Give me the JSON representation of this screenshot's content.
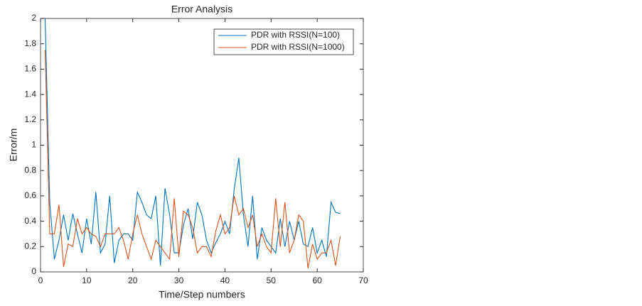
{
  "chart_data": {
    "type": "line",
    "title": "Error Analysis",
    "xlabel": "Time/Step numbers",
    "ylabel": "Error/m",
    "x": [
      1,
      2,
      3,
      4,
      5,
      6,
      7,
      8,
      9,
      10,
      11,
      12,
      13,
      14,
      15,
      16,
      17,
      18,
      19,
      20,
      21,
      22,
      23,
      24,
      25,
      26,
      27,
      28,
      29,
      30,
      31,
      32,
      33,
      34,
      35,
      36,
      37,
      38,
      39,
      40,
      41,
      42,
      43,
      44,
      45,
      46,
      47,
      48,
      49,
      50,
      51,
      52,
      53,
      54,
      55,
      56,
      57,
      58,
      59,
      60,
      61,
      62,
      63,
      64,
      65
    ],
    "series": [
      {
        "name": "PDR with RSSI(N=100)",
        "color": "#0072bd",
        "values": [
          2.0,
          0.55,
          0.1,
          0.25,
          0.45,
          0.25,
          0.46,
          0.3,
          0.15,
          0.42,
          0.22,
          0.63,
          0.15,
          0.22,
          0.6,
          0.07,
          0.25,
          0.3,
          0.3,
          0.25,
          0.63,
          0.55,
          0.45,
          0.42,
          0.6,
          0.05,
          0.66,
          0.45,
          0.15,
          0.15,
          0.37,
          0.5,
          0.26,
          0.55,
          0.45,
          0.25,
          0.15,
          0.23,
          0.3,
          0.4,
          0.3,
          0.65,
          0.9,
          0.45,
          0.2,
          0.6,
          0.1,
          0.35,
          0.25,
          0.2,
          0.15,
          0.42,
          0.2,
          0.4,
          0.25,
          0.4,
          0.22,
          0.2,
          0.35,
          0.15,
          0.25,
          0.12,
          0.55,
          0.47,
          0.46
        ]
      },
      {
        "name": "PDR with RSSI(N=1000)",
        "color": "#d95319",
        "values": [
          1.75,
          0.3,
          0.3,
          0.53,
          0.04,
          0.22,
          0.2,
          0.42,
          0.3,
          0.35,
          0.3,
          0.28,
          0.2,
          0.3,
          0.3,
          0.3,
          0.35,
          0.25,
          0.1,
          0.3,
          0.45,
          0.3,
          0.2,
          0.1,
          0.25,
          0.2,
          0.15,
          0.1,
          0.58,
          0.12,
          0.48,
          0.45,
          0.35,
          0.15,
          0.2,
          0.2,
          0.12,
          0.32,
          0.45,
          0.3,
          0.35,
          0.6,
          0.45,
          0.5,
          0.35,
          0.45,
          0.2,
          0.3,
          0.2,
          0.15,
          0.58,
          0.2,
          0.55,
          0.15,
          0.25,
          0.45,
          0.4,
          0.03,
          0.22,
          0.1,
          0.15,
          0.15,
          0.25,
          0.05,
          0.28
        ]
      }
    ],
    "xlim": [
      0,
      70
    ],
    "xticks": [
      0,
      10,
      20,
      30,
      40,
      50,
      60,
      70
    ],
    "ylim": [
      0,
      2
    ],
    "yticks": [
      0,
      0.2,
      0.4,
      0.6,
      0.8,
      1,
      1.2,
      1.4,
      1.6,
      1.8,
      2
    ],
    "legend": "upper right"
  }
}
